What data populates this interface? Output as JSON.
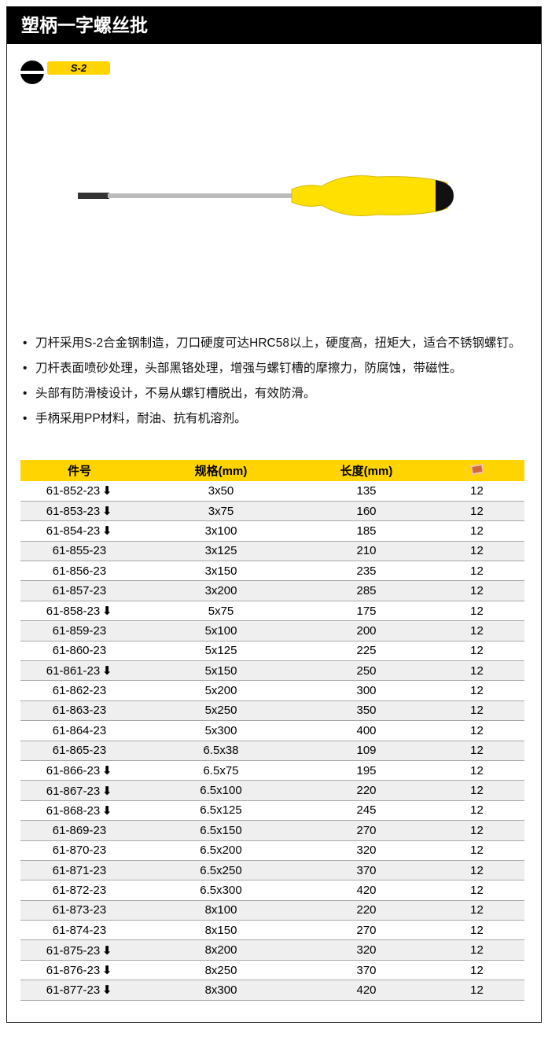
{
  "title": "塑柄一字螺丝批",
  "badge": "S-2",
  "features": [
    "刀杆采用S-2合金钢制造，刀口硬度可达HRC58以上，硬度高，扭矩大，适合不锈钢螺钉。",
    "刀杆表面喷砂处理，头部黑铬处理，增强与螺钉槽的摩擦力，防腐蚀，带磁性。",
    "头部有防滑棱设计，不易从螺钉槽脱出，有效防滑。",
    "手柄采用PP材料，耐油、抗有机溶剂。"
  ],
  "table": {
    "headers": [
      "件号",
      "规格(mm)",
      "长度(mm)"
    ],
    "header_icon": "box-icon",
    "rows": [
      [
        "61-852-23",
        true,
        "3x50",
        "135",
        "12"
      ],
      [
        "61-853-23",
        true,
        "3x75",
        "160",
        "12"
      ],
      [
        "61-854-23",
        true,
        "3x100",
        "185",
        "12"
      ],
      [
        "61-855-23",
        false,
        "3x125",
        "210",
        "12"
      ],
      [
        "61-856-23",
        false,
        "3x150",
        "235",
        "12"
      ],
      [
        "61-857-23",
        false,
        "3x200",
        "285",
        "12"
      ],
      [
        "61-858-23",
        true,
        "5x75",
        "175",
        "12"
      ],
      [
        "61-859-23",
        false,
        "5x100",
        "200",
        "12"
      ],
      [
        "61-860-23",
        false,
        "5x125",
        "225",
        "12"
      ],
      [
        "61-861-23",
        true,
        "5x150",
        "250",
        "12"
      ],
      [
        "61-862-23",
        false,
        "5x200",
        "300",
        "12"
      ],
      [
        "61-863-23",
        false,
        "5x250",
        "350",
        "12"
      ],
      [
        "61-864-23",
        false,
        "5x300",
        "400",
        "12"
      ],
      [
        "61-865-23",
        false,
        "6.5x38",
        "109",
        "12"
      ],
      [
        "61-866-23",
        true,
        "6.5x75",
        "195",
        "12"
      ],
      [
        "61-867-23",
        true,
        "6.5x100",
        "220",
        "12"
      ],
      [
        "61-868-23",
        true,
        "6.5x125",
        "245",
        "12"
      ],
      [
        "61-869-23",
        false,
        "6.5x150",
        "270",
        "12"
      ],
      [
        "61-870-23",
        false,
        "6.5x200",
        "320",
        "12"
      ],
      [
        "61-871-23",
        false,
        "6.5x250",
        "370",
        "12"
      ],
      [
        "61-872-23",
        false,
        "6.5x300",
        "420",
        "12"
      ],
      [
        "61-873-23",
        false,
        "8x100",
        "220",
        "12"
      ],
      [
        "61-874-23",
        false,
        "8x150",
        "270",
        "12"
      ],
      [
        "61-875-23",
        true,
        "8x200",
        "320",
        "12"
      ],
      [
        "61-876-23",
        true,
        "8x250",
        "370",
        "12"
      ],
      [
        "61-877-23",
        true,
        "8x300",
        "420",
        "12"
      ]
    ]
  },
  "colors": {
    "accent": "#ffd400",
    "header_bg": "#000000"
  }
}
